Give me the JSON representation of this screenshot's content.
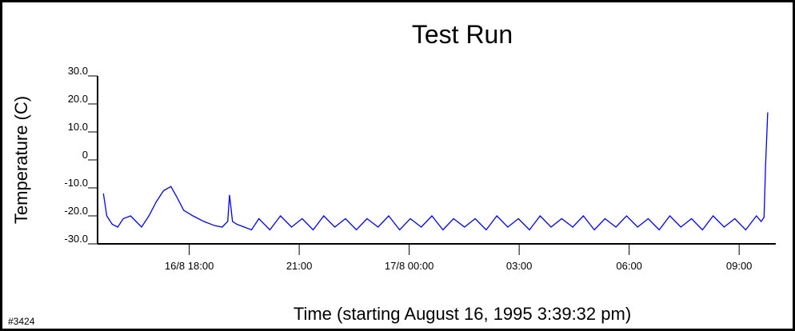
{
  "chart_data": {
    "type": "line",
    "title": "Test Run",
    "x_label": "Time (starting August 16, 1995 3:39:32 pm)",
    "y_label": "Temperature (C)",
    "annotation": "#3424",
    "x": [
      15.66,
      15.75,
      15.9,
      16.05,
      16.2,
      16.4,
      16.55,
      16.7,
      16.9,
      17.1,
      17.3,
      17.5,
      17.65,
      17.85,
      18.1,
      18.4,
      18.7,
      18.9,
      19.05,
      19.1,
      19.18,
      19.3,
      19.5,
      19.7,
      19.9,
      20.2,
      20.49,
      20.79,
      21.08,
      21.38,
      21.67,
      21.97,
      22.26,
      22.56,
      22.85,
      23.15,
      23.44,
      23.74,
      24.03,
      24.33,
      24.62,
      24.92,
      25.21,
      25.51,
      25.8,
      26.1,
      26.39,
      26.69,
      26.98,
      27.28,
      27.57,
      27.87,
      28.16,
      28.46,
      28.75,
      29.05,
      29.34,
      29.64,
      29.93,
      30.23,
      30.52,
      30.82,
      31.11,
      31.41,
      31.7,
      32.0,
      32.29,
      32.59,
      32.88,
      33.18,
      33.47,
      33.6,
      33.68,
      33.72,
      33.78
    ],
    "series": [
      {
        "name": "Temperature",
        "color": "#0000ff",
        "values": [
          -12,
          -20,
          -23,
          -24,
          -21,
          -20,
          -22,
          -24,
          -20,
          -15,
          -11,
          -9.5,
          -13,
          -18,
          -20,
          -22,
          -23.5,
          -24,
          -22,
          -12.5,
          -22,
          -23,
          -24,
          -25,
          -21,
          -25,
          -20,
          -24,
          -21,
          -25,
          -20,
          -24,
          -21,
          -25,
          -21,
          -24,
          -20,
          -25,
          -21,
          -24,
          -20,
          -25,
          -21,
          -24,
          -21,
          -25,
          -20,
          -24,
          -21,
          -25,
          -20,
          -24,
          -21,
          -24,
          -20,
          -25,
          -21,
          -24,
          -20,
          -24,
          -21,
          -25,
          -20,
          -24,
          -21,
          -25,
          -20,
          -24,
          -21,
          -25,
          -20,
          -22,
          -20.5,
          -2,
          17
        ]
      }
    ],
    "xlim": [
      15.5,
      34.0
    ],
    "xticks": [
      {
        "value": 18,
        "label": "16/8 18:00"
      },
      {
        "value": 21,
        "label": "21:00"
      },
      {
        "value": 24,
        "label": "17/8 00:00"
      },
      {
        "value": 27,
        "label": "03:00"
      },
      {
        "value": 30,
        "label": "06:00"
      },
      {
        "value": 33,
        "label": "09:00"
      }
    ],
    "ylim": [
      -30,
      30
    ],
    "yticks": [
      {
        "value": 30,
        "label": "30.0"
      },
      {
        "value": 20,
        "label": "20.0"
      },
      {
        "value": 10,
        "label": "10.0"
      },
      0,
      {
        "value": -10,
        "label": "-10.0"
      },
      {
        "value": -20,
        "label": "-20.0"
      },
      {
        "value": -30,
        "label": "-30.0"
      }
    ],
    "grid": false
  }
}
